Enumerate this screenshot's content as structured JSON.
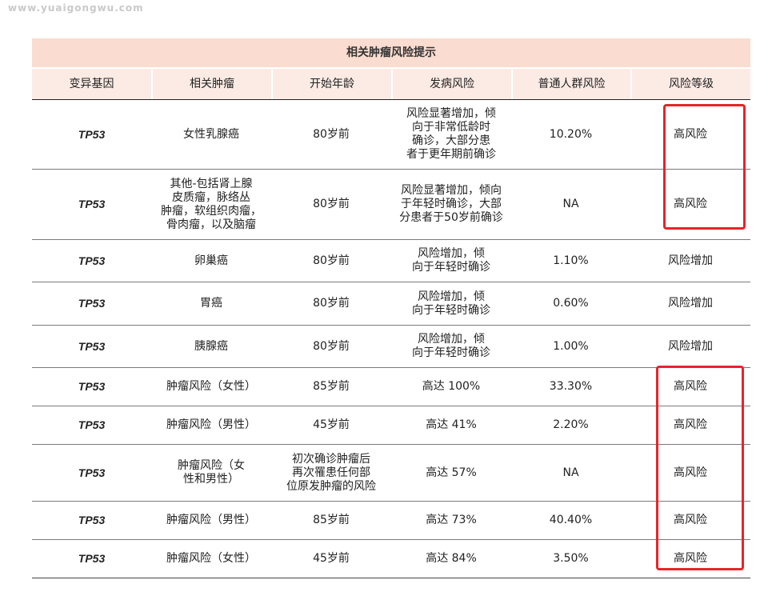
{
  "watermark": "www.yuaigongwu.com",
  "table": {
    "title": "相关肿瘤风险提示",
    "headers": [
      "变异基因",
      "相关肿瘤",
      "开始年龄",
      "发病风险",
      "普通人群风险",
      "风险等级"
    ],
    "rows": [
      {
        "gene": "TP53",
        "tumor": [
          "女性乳腺癌"
        ],
        "age": [
          "80岁前"
        ],
        "risk": [
          "风险显著增加，倾",
          "向于非常低龄时",
          "确诊，大部分患",
          "者于更年期前确诊"
        ],
        "population": "10.20%",
        "level": "高风险"
      },
      {
        "gene": "TP53",
        "tumor": [
          "其他-包括肾上腺",
          "皮质瘤，脉络丛",
          "肿瘤，软组织肉瘤，",
          "骨肉瘤，以及脑瘤"
        ],
        "age": [
          "80岁前"
        ],
        "risk": [
          "风险显著增加，倾向",
          "于年轻时确诊，大部",
          "分患者于50岁前确诊"
        ],
        "population": "NA",
        "level": "高风险"
      },
      {
        "gene": "TP53",
        "tumor": [
          "卵巢癌"
        ],
        "age": [
          "80岁前"
        ],
        "risk": [
          "风险增加，倾",
          "向于年轻时确诊"
        ],
        "population": "1.10%",
        "level": "风险增加"
      },
      {
        "gene": "TP53",
        "tumor": [
          "胃癌"
        ],
        "age": [
          "80岁前"
        ],
        "risk": [
          "风险增加，倾",
          "向于年轻时确诊"
        ],
        "population": "0.60%",
        "level": "风险增加"
      },
      {
        "gene": "TP53",
        "tumor": [
          "胰腺癌"
        ],
        "age": [
          "80岁前"
        ],
        "risk": [
          "风险增加，倾",
          "向于年轻时确诊"
        ],
        "population": "1.00%",
        "level": "风险增加"
      },
      {
        "gene": "TP53",
        "tumor": [
          "肿瘤风险（女性）"
        ],
        "age": [
          "85岁前"
        ],
        "risk": [
          "高达 100%"
        ],
        "population": "33.30%",
        "level": "高风险"
      },
      {
        "gene": "TP53",
        "tumor": [
          "肿瘤风险（男性）"
        ],
        "age": [
          "45岁前"
        ],
        "risk": [
          "高达 41%"
        ],
        "population": "2.20%",
        "level": "高风险"
      },
      {
        "gene": "TP53",
        "tumor": [
          "肿瘤风险（女",
          "性和男性）"
        ],
        "age": [
          "初次确诊肿瘤后",
          "再次罹患任何部",
          "位原发肿瘤的风险"
        ],
        "risk": [
          "高达 57%"
        ],
        "population": "NA",
        "level": "高风险"
      },
      {
        "gene": "TP53",
        "tumor": [
          "肿瘤风险（男性）"
        ],
        "age": [
          "85岁前"
        ],
        "risk": [
          "高达 73%"
        ],
        "population": "40.40%",
        "level": "高风险"
      },
      {
        "gene": "TP53",
        "tumor": [
          "肿瘤风险（女性）"
        ],
        "age": [
          "45岁前"
        ],
        "risk": [
          "高达 84%"
        ],
        "population": "3.50%",
        "level": "高风险"
      }
    ]
  },
  "colors": {
    "title_bg": "#fbdcd0",
    "header_bg": "#fcebe5",
    "highlight": "#e8232a"
  }
}
